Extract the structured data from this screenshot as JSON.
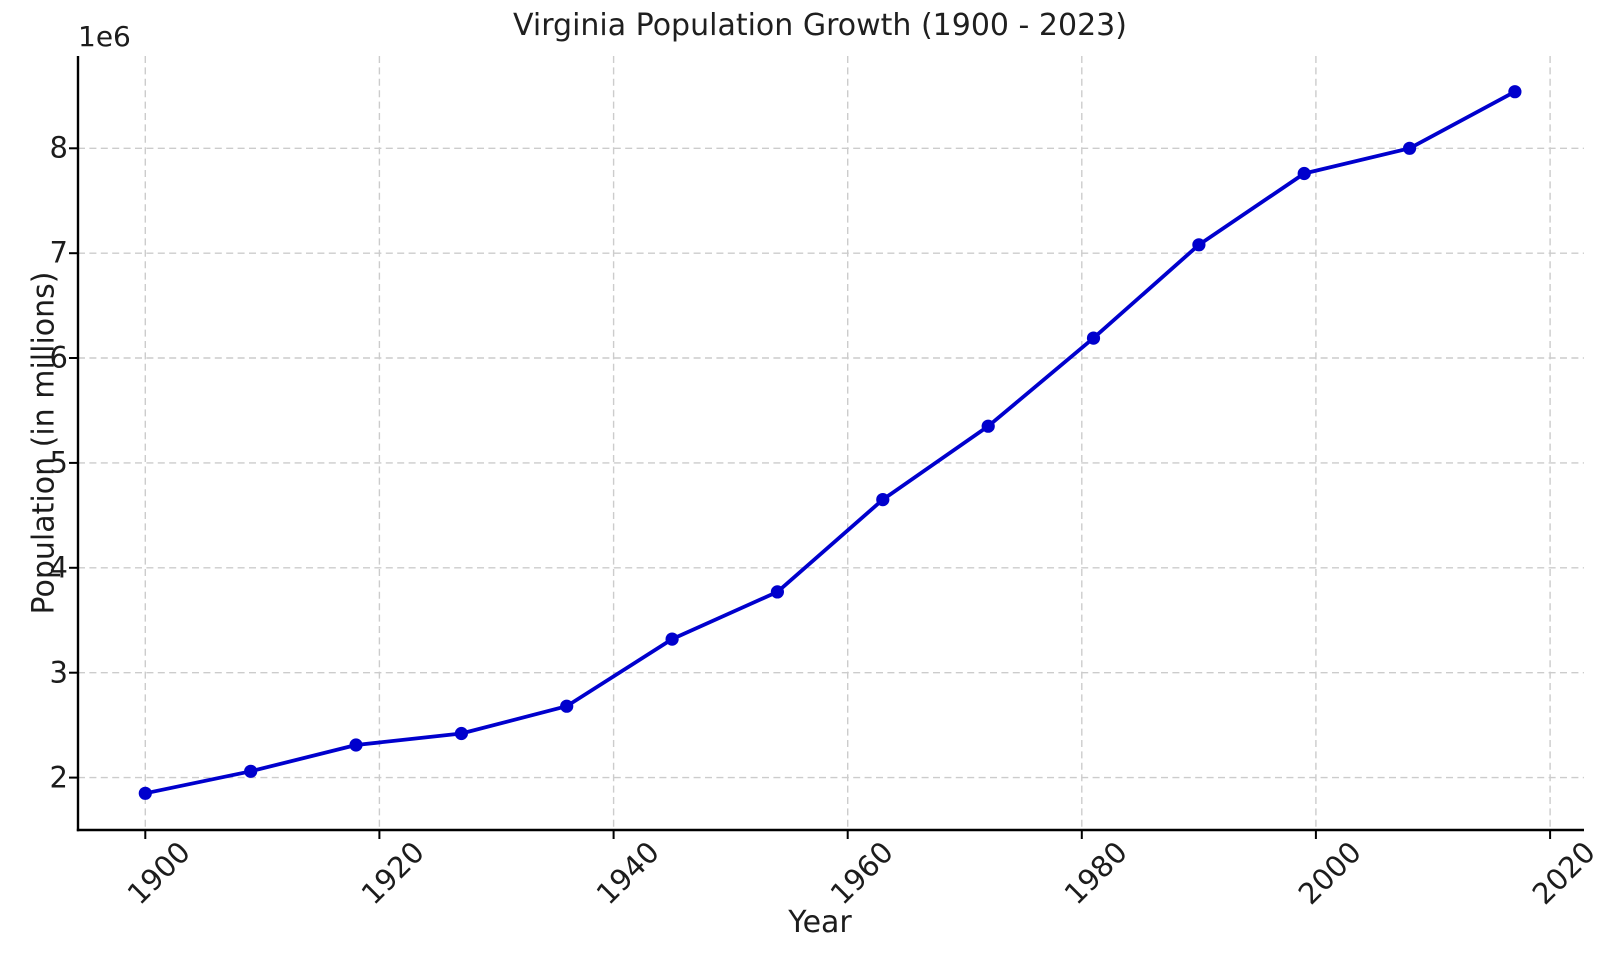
{
  "chart_data": {
    "type": "line",
    "title": "Virginia Population Growth (1900 - 2023)",
    "xlabel": "Year",
    "ylabel": "Population (in millions)",
    "y_axis_offset_text": "1e6",
    "y_values_unit": "millions (x 1e6 persons)",
    "x": [
      1900,
      1909,
      1918,
      1927,
      1936,
      1945,
      1954,
      1963,
      1972,
      1981,
      1990,
      1999,
      2008,
      2017
    ],
    "series": [
      {
        "name": "Virginia population",
        "values": [
          1.85,
          2.06,
          2.31,
          2.42,
          2.68,
          3.32,
          3.77,
          4.65,
          5.35,
          6.19,
          7.08,
          7.76,
          8.0,
          8.54
        ]
      }
    ],
    "xticks": [
      1900,
      1920,
      1940,
      1960,
      1980,
      2000,
      2020
    ],
    "yticks": [
      2,
      3,
      4,
      5,
      6,
      7,
      8
    ],
    "xlim": [
      1894.25,
      2022.9
    ],
    "ylim": [
      1.5,
      8.88
    ],
    "grid": true,
    "legend": "none",
    "marker": "circle",
    "line_color": "#0000CD",
    "marker_color": "#0000CD",
    "grid_color": "#cccccc",
    "spine_color": "#000000",
    "text_color": "#1c1c1c",
    "background_color": "#ffffff"
  }
}
